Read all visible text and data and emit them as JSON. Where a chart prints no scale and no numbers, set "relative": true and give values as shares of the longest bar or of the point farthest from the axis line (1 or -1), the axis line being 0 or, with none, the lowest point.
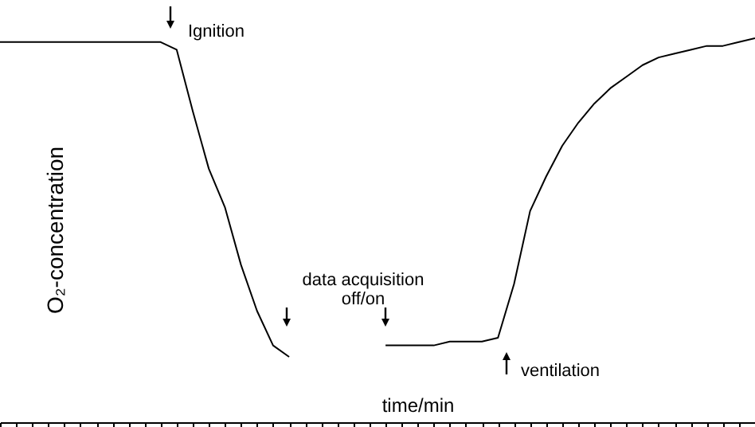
{
  "chart_data": {
    "type": "line",
    "relative": true,
    "xlabel": "time/min",
    "ylabel": "O₂-concentration",
    "categories": [
      null,
      null,
      null,
      null,
      null,
      null,
      null,
      null,
      null,
      null,
      null,
      null,
      null,
      null,
      null,
      null,
      null,
      null,
      null,
      null,
      null,
      null,
      null,
      null,
      null,
      null,
      null,
      null,
      null,
      null,
      null,
      null,
      null,
      null,
      null,
      null,
      null,
      null,
      null,
      null,
      null,
      null,
      null,
      null,
      null,
      null,
      null,
      null
    ],
    "series": [
      {
        "color": "#000000",
        "values": [
          0.99,
          0.99,
          0.99,
          0.99,
          0.99,
          0.99,
          0.99,
          0.99,
          0.99,
          0.99,
          0.99,
          0.97,
          0.81,
          0.66,
          0.56,
          0.41,
          0.29,
          0.2,
          0.17,
          null,
          null,
          null,
          null,
          null,
          0.2,
          0.2,
          0.2,
          0.2,
          0.21,
          0.21,
          0.21,
          0.22,
          0.36,
          0.55,
          0.64,
          0.72,
          0.78,
          0.83,
          0.87,
          0.9,
          0.93,
          0.95,
          0.96,
          0.97,
          0.98,
          0.98,
          0.99,
          1
        ]
      }
    ],
    "annotations": [
      "Ignition",
      "data acquisition\noff/on",
      "ventilation"
    ]
  }
}
